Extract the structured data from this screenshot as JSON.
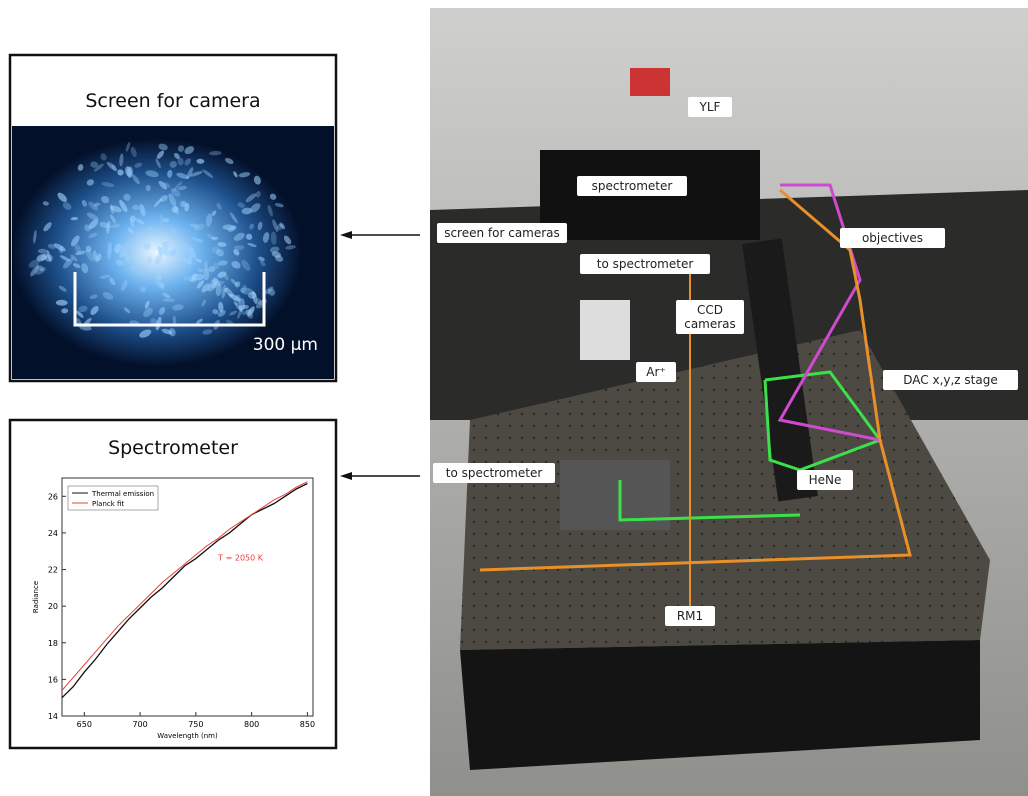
{
  "panels": [
    {
      "title": "Screen for camera",
      "scale_label": "300 μm"
    },
    {
      "title": "Spectrometer",
      "chart": {
        "type": "line",
        "x": [
          630,
          640,
          650,
          660,
          670,
          680,
          690,
          700,
          710,
          720,
          730,
          740,
          750,
          760,
          770,
          780,
          790,
          800,
          810,
          820,
          830,
          840,
          850
        ],
        "series": [
          {
            "name": "Thermal emission",
            "color": "#111111",
            "values": [
              15.0,
              15.6,
              16.4,
              17.1,
              17.9,
              18.6,
              19.3,
              19.9,
              20.5,
              21.0,
              21.6,
              22.2,
              22.6,
              23.1,
              23.6,
              24.0,
              24.5,
              25.0,
              25.3,
              25.6,
              26.0,
              26.4,
              26.7
            ]
          },
          {
            "name": "Planck fit",
            "color": "#e8413c",
            "values": [
              15.4,
              16.1,
              16.8,
              17.5,
              18.2,
              18.9,
              19.5,
              20.1,
              20.7,
              21.3,
              21.8,
              22.3,
              22.8,
              23.3,
              23.7,
              24.2,
              24.6,
              25.0,
              25.4,
              25.8,
              26.1,
              26.5,
              26.8
            ]
          }
        ],
        "annotation": "T = 2050 K",
        "xlabel": "Wavelength (nm)",
        "ylabel": "Radiance",
        "xlim": [
          630,
          855
        ],
        "xticks": [
          650,
          700,
          750,
          800,
          850
        ],
        "ylim": [
          14,
          27
        ],
        "yticks": [
          14,
          16,
          18,
          20,
          22,
          24,
          26
        ]
      }
    }
  ],
  "photo": {
    "labels": [
      "YLF",
      "spectrometer",
      "screen for cameras",
      "to spectrometer",
      "objectives",
      "CCD cameras",
      "Ar⁺",
      "DAC x,y,z stage",
      "to spectrometer",
      "HeNe",
      "RM1"
    ]
  }
}
